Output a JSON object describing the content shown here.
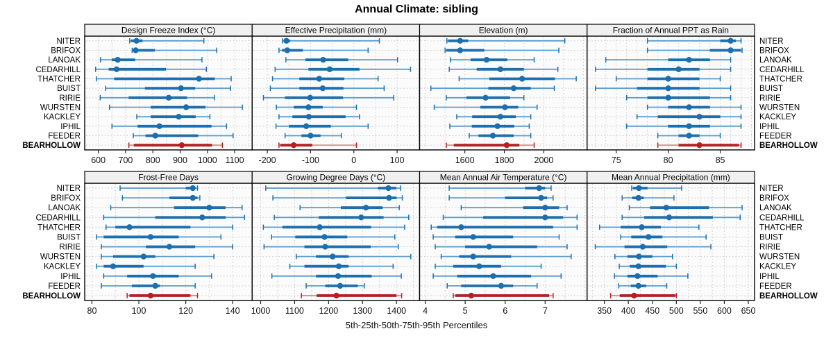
{
  "chart_data": {
    "type": "dot-interval-trellis",
    "title": "Annual Climate: sibling",
    "caption": "5th-25th-50th-75th-95th Percentiles",
    "legend_note": "each row shows 5th, 25th, 50th, 75th, 95th percentile whisker-bar-dot",
    "sites": [
      "NITER",
      "BRIFOX",
      "LANOAK",
      "CEDARHILL",
      "THATCHER",
      "BUIST",
      "RIRIE",
      "WURSTEN",
      "KACKLEY",
      "IPHIL",
      "FEEDER",
      "BEARHOLLOW"
    ],
    "highlight_site": "BEARHOLLOW",
    "colors": {
      "blue_main": "#1b6fae",
      "blue_light": "#5b9ed0",
      "red_main": "#b52025",
      "red_light": "#d98f8f",
      "grid": "#c9c9c9",
      "panel_bg": "#fbfbfb",
      "header_bg": "#f0f0f0",
      "border": "#000000"
    },
    "panels": [
      {
        "title": "Design Freeze Index (°C)",
        "xlim": [
          550,
          1164
        ],
        "ticks": [
          600,
          700,
          800,
          900,
          1000,
          1100
        ],
        "minor_step": 50,
        "values": [
          [
            715,
            720,
            740,
            762,
            987
          ],
          [
            724,
            726,
            737,
            807,
            1034
          ],
          [
            608,
            649,
            671,
            735,
            980
          ],
          [
            590,
            638,
            667,
            848,
            996
          ],
          [
            593,
            658,
            969,
            1027,
            1087
          ],
          [
            627,
            771,
            903,
            955,
            1085
          ],
          [
            607,
            711,
            858,
            925,
            1026
          ],
          [
            641,
            792,
            922,
            993,
            1128
          ],
          [
            741,
            792,
            895,
            957,
            1009
          ],
          [
            650,
            744,
            824,
            1015,
            1070
          ],
          [
            728,
            773,
            809,
            966,
            1094
          ],
          [
            712,
            730,
            906,
            1017,
            1055
          ]
        ]
      },
      {
        "title": "Effective Precipitation (mm)",
        "xlim": [
          -235,
          152
        ],
        "ticks": [
          -200,
          -100,
          0,
          100
        ],
        "minor_step": 50,
        "values": [
          [
            -165,
            -162,
            -156,
            -147,
            59
          ],
          [
            -173,
            -166,
            -154,
            -118,
            33
          ],
          [
            -157,
            -112,
            -71,
            -13,
            101
          ],
          [
            -182,
            -105,
            -56,
            13,
            131
          ],
          [
            -188,
            -126,
            -80,
            -22,
            56
          ],
          [
            -193,
            -126,
            -72,
            -24,
            70
          ],
          [
            -209,
            -159,
            -101,
            -25,
            92
          ],
          [
            -179,
            -139,
            -105,
            -72,
            6
          ],
          [
            -173,
            -142,
            -104,
            -19,
            13
          ],
          [
            -180,
            -150,
            -110,
            -53,
            33
          ],
          [
            -159,
            -121,
            -100,
            -77,
            -29
          ],
          [
            -173,
            -170,
            -139,
            -96,
            6
          ]
        ]
      },
      {
        "title": "Elevation (m)",
        "xlim": [
          1371,
          2219
        ],
        "ticks": [
          1600,
          1800,
          2000
        ],
        "minor_step": 100,
        "values": [
          [
            1509,
            1515,
            1576,
            1617,
            2106
          ],
          [
            1500,
            1506,
            1576,
            1698,
            2076
          ],
          [
            1527,
            1629,
            1710,
            1815,
            1951
          ],
          [
            1521,
            1660,
            1780,
            1899,
            2071
          ],
          [
            1571,
            1724,
            1890,
            2056,
            2164
          ],
          [
            1428,
            1719,
            1847,
            1934,
            2053
          ],
          [
            1506,
            1608,
            1705,
            1829,
            1899
          ],
          [
            1445,
            1678,
            1803,
            1870,
            1966
          ],
          [
            1559,
            1637,
            1780,
            1858,
            1934
          ],
          [
            1524,
            1635,
            1765,
            1850,
            1926
          ],
          [
            1622,
            1669,
            1742,
            1847,
            1934
          ],
          [
            1506,
            1544,
            1812,
            1876,
            1951
          ]
        ]
      },
      {
        "title": "Fraction of Annual PPT as Rain",
        "xlim": [
          72.2,
          88.3
        ],
        "ticks": [
          75,
          80,
          85
        ],
        "minor_step": 1,
        "values": [
          [
            78,
            85,
            86,
            86.5,
            87
          ],
          [
            78,
            84,
            86,
            87,
            87.1
          ],
          [
            74,
            80,
            82,
            84,
            86
          ],
          [
            73,
            78,
            81,
            83,
            86
          ],
          [
            75,
            78,
            80,
            83,
            85
          ],
          [
            73,
            77,
            80,
            83,
            86
          ],
          [
            76,
            78,
            80,
            84,
            86
          ],
          [
            78,
            80,
            82,
            84,
            87
          ],
          [
            77,
            79,
            83,
            85,
            87
          ],
          [
            76,
            80,
            82,
            84,
            87
          ],
          [
            79,
            81,
            82,
            83,
            85
          ],
          [
            79,
            81,
            83,
            86.8,
            87
          ]
        ]
      },
      {
        "title": "Frost-Free Days",
        "xlim": [
          76.9,
          148.3
        ],
        "ticks": [
          80,
          100,
          120,
          140
        ],
        "minor_step": 10,
        "values": [
          [
            92,
            120,
            123,
            124,
            125
          ],
          [
            93,
            113,
            123,
            125,
            126
          ],
          [
            88,
            115,
            130,
            137,
            144
          ],
          [
            85,
            107,
            127,
            137,
            145
          ],
          [
            86,
            90,
            96,
            122,
            140
          ],
          [
            82,
            85,
            105,
            117,
            135
          ],
          [
            84,
            103,
            113,
            124,
            140
          ],
          [
            84,
            89,
            102,
            107,
            132
          ],
          [
            82,
            85,
            89,
            102,
            124
          ],
          [
            85,
            95,
            106,
            117,
            131
          ],
          [
            84,
            97,
            107,
            109,
            124
          ],
          [
            95,
            96,
            105,
            122,
            125
          ]
        ]
      },
      {
        "title": "Growing Degree Days (°C)",
        "xlim": [
          975,
          1468
        ],
        "ticks": [
          1000,
          1100,
          1200,
          1300,
          1400
        ],
        "minor_step": 50,
        "values": [
          [
            1015,
            1345,
            1376,
            1399,
            1412
          ],
          [
            1036,
            1251,
            1378,
            1400,
            1417
          ],
          [
            1116,
            1236,
            1310,
            1359,
            1408
          ],
          [
            1040,
            1171,
            1296,
            1362,
            1436
          ],
          [
            1008,
            1064,
            1174,
            1325,
            1424
          ],
          [
            1032,
            1102,
            1188,
            1255,
            1395
          ],
          [
            1010,
            1129,
            1190,
            1324,
            1405
          ],
          [
            1105,
            1163,
            1212,
            1259,
            1442
          ],
          [
            1086,
            1129,
            1230,
            1259,
            1390
          ],
          [
            1033,
            1163,
            1228,
            1327,
            1414
          ],
          [
            1134,
            1190,
            1234,
            1286,
            1305
          ],
          [
            1120,
            1165,
            1223,
            1400,
            1415
          ]
        ]
      },
      {
        "title": "Mean Annual Air Temperature (°C)",
        "xlim": [
          3.86,
          8.05
        ],
        "ticks": [
          4,
          5,
          6,
          7
        ],
        "minor_step": 0.5,
        "values": [
          [
            4.6,
            6.5,
            6.85,
            7.0,
            7.15
          ],
          [
            4.6,
            6.0,
            6.9,
            7.05,
            7.2
          ],
          [
            4.9,
            6.45,
            7.0,
            7.35,
            7.55
          ],
          [
            4.45,
            5.45,
            7.0,
            7.45,
            7.8
          ],
          [
            4.15,
            4.3,
            4.9,
            7.2,
            7.8
          ],
          [
            4.2,
            4.75,
            5.2,
            6.2,
            7.35
          ],
          [
            4.25,
            5.0,
            5.6,
            6.8,
            7.55
          ],
          [
            4.4,
            4.85,
            5.2,
            6.15,
            7.65
          ],
          [
            4.25,
            4.7,
            5.35,
            5.9,
            6.9
          ],
          [
            4.2,
            4.8,
            5.7,
            6.65,
            7.4
          ],
          [
            4.55,
            4.9,
            5.9,
            6.2,
            6.8
          ],
          [
            4.7,
            4.75,
            5.15,
            7.1,
            7.2
          ]
        ]
      },
      {
        "title": "Mean Annual Precipitation (mm)",
        "xlim": [
          314,
          663
        ],
        "ticks": [
          350,
          400,
          450,
          500,
          550,
          600,
          650
        ],
        "minor_step": 25,
        "values": [
          [
            407,
            410,
            422,
            440,
            511
          ],
          [
            387,
            408,
            421,
            432,
            495
          ],
          [
            402,
            445,
            479,
            568,
            637
          ],
          [
            387,
            433,
            485,
            576,
            633
          ],
          [
            340,
            384,
            428,
            468,
            547
          ],
          [
            384,
            406,
            442,
            471,
            562
          ],
          [
            331,
            392,
            430,
            481,
            572
          ],
          [
            372,
            398,
            422,
            450,
            492
          ],
          [
            381,
            403,
            421,
            478,
            500
          ],
          [
            371,
            398,
            419,
            461,
            524
          ],
          [
            380,
            405,
            421,
            437,
            480
          ],
          [
            363,
            382,
            412,
            498,
            500
          ]
        ]
      }
    ]
  }
}
